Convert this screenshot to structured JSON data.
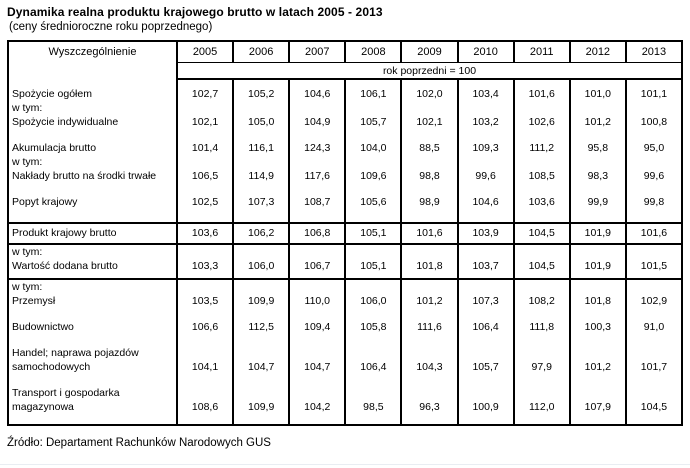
{
  "title": "Dynamika realna produktu krajowego brutto w latach 2005 - 2013",
  "subtitle": "(ceny średnioroczne roku poprzednego)",
  "source": "Źródło: Departament Rachunków Narodowych GUS",
  "table": {
    "header_col": "Wyszczególnienie",
    "years": [
      "2005",
      "2006",
      "2007",
      "2008",
      "2009",
      "2010",
      "2011",
      "2012",
      "2013"
    ],
    "base_note": "rok poprzedni = 100",
    "body_lines": [
      {
        "cls": "line first",
        "label": "Spożycie ogółem",
        "values": [
          "102,7",
          "105,2",
          "104,6",
          "106,1",
          "102,0",
          "103,4",
          "101,6",
          "101,0",
          "101,1"
        ]
      },
      {
        "cls": "line",
        "label": "w tym:",
        "values": null
      },
      {
        "cls": "line",
        "label": "Spożycie indywidualne",
        "values": [
          "102,1",
          "105,0",
          "104,9",
          "105,7",
          "102,1",
          "103,2",
          "102,6",
          "101,2",
          "100,8"
        ]
      },
      {
        "cls": "spacer",
        "label": "",
        "values": null
      },
      {
        "cls": "line",
        "label": "Akumulacja brutto",
        "values": [
          "101,4",
          "116,1",
          "124,3",
          "104,0",
          "88,5",
          "109,3",
          "111,2",
          "95,8",
          "95,0"
        ]
      },
      {
        "cls": "line",
        "label": "w tym:",
        "values": null
      },
      {
        "cls": "line",
        "label": "Nakłady brutto na środki trwałe",
        "values": [
          "106,5",
          "114,9",
          "117,6",
          "109,6",
          "98,8",
          "99,6",
          "108,5",
          "98,3",
          "99,6"
        ]
      },
      {
        "cls": "spacer",
        "label": "",
        "values": null
      },
      {
        "cls": "line last",
        "label": "Popyt krajowy",
        "values": [
          "102,5",
          "107,3",
          "108,7",
          "105,6",
          "98,9",
          "104,6",
          "103,6",
          "99,9",
          "99,8"
        ]
      },
      {
        "cls": "emph",
        "label": "Produkt krajowy brutto",
        "values": [
          "103,6",
          "106,2",
          "106,8",
          "105,1",
          "101,6",
          "103,9",
          "104,5",
          "101,9",
          "101,6"
        ]
      },
      {
        "cls": "line gstart",
        "label": "w tym:",
        "values": null
      },
      {
        "cls": "line padsm",
        "label": "Wartość dodana brutto",
        "values": [
          "103,3",
          "106,0",
          "106,7",
          "105,1",
          "101,8",
          "103,7",
          "104,5",
          "101,9",
          "101,5"
        ]
      },
      {
        "cls": "line gstart",
        "label": "w tym:",
        "values": null
      },
      {
        "cls": "line",
        "label": "Przemysł",
        "values": [
          "103,5",
          "109,9",
          "110,0",
          "106,0",
          "101,2",
          "107,3",
          "108,2",
          "101,8",
          "102,9"
        ]
      },
      {
        "cls": "spacer",
        "label": "",
        "values": null
      },
      {
        "cls": "line",
        "label": "Budownictwo",
        "values": [
          "106,6",
          "112,5",
          "109,4",
          "105,8",
          "111,6",
          "106,4",
          "111,8",
          "100,3",
          "91,0"
        ]
      },
      {
        "cls": "spacer",
        "label": "",
        "values": null
      },
      {
        "cls": "line",
        "label": "Handel; naprawa pojazdów",
        "values": null
      },
      {
        "cls": "line",
        "label": "samochodowych",
        "values": [
          "104,1",
          "104,7",
          "104,7",
          "106,4",
          "104,3",
          "105,7",
          "97,9",
          "101,2",
          "101,7"
        ]
      },
      {
        "cls": "spacer",
        "label": "",
        "values": null
      },
      {
        "cls": "line",
        "label": "Transport i gospodarka",
        "values": null
      },
      {
        "cls": "line last2",
        "label": "magazynowa",
        "values": [
          "108,6",
          "109,9",
          "104,2",
          "98,5",
          "96,3",
          "100,9",
          "112,0",
          "107,9",
          "104,5"
        ]
      }
    ]
  },
  "chart_data": {
    "type": "table",
    "title": "Dynamika realna produktu krajowego brutto w latach 2005 - 2013",
    "subtitle": "(ceny średnioroczne roku poprzednego)",
    "unit": "rok poprzedni = 100",
    "categories": [
      "2005",
      "2006",
      "2007",
      "2008",
      "2009",
      "2010",
      "2011",
      "2012",
      "2013"
    ],
    "series": [
      {
        "name": "Spożycie ogółem",
        "values": [
          102.7,
          105.2,
          104.6,
          106.1,
          102.0,
          103.4,
          101.6,
          101.0,
          101.1
        ]
      },
      {
        "name": "Spożycie indywidualne",
        "values": [
          102.1,
          105.0,
          104.9,
          105.7,
          102.1,
          103.2,
          102.6,
          101.2,
          100.8
        ]
      },
      {
        "name": "Akumulacja brutto",
        "values": [
          101.4,
          116.1,
          124.3,
          104.0,
          88.5,
          109.3,
          111.2,
          95.8,
          95.0
        ]
      },
      {
        "name": "Nakłady brutto na środki trwałe",
        "values": [
          106.5,
          114.9,
          117.6,
          109.6,
          98.8,
          99.6,
          108.5,
          98.3,
          99.6
        ]
      },
      {
        "name": "Popyt krajowy",
        "values": [
          102.5,
          107.3,
          108.7,
          105.6,
          98.9,
          104.6,
          103.6,
          99.9,
          99.8
        ]
      },
      {
        "name": "Produkt krajowy brutto",
        "values": [
          103.6,
          106.2,
          106.8,
          105.1,
          101.6,
          103.9,
          104.5,
          101.9,
          101.6
        ]
      },
      {
        "name": "Wartość dodana brutto",
        "values": [
          103.3,
          106.0,
          106.7,
          105.1,
          101.8,
          103.7,
          104.5,
          101.9,
          101.5
        ]
      },
      {
        "name": "Przemysł",
        "values": [
          103.5,
          109.9,
          110.0,
          106.0,
          101.2,
          107.3,
          108.2,
          101.8,
          102.9
        ]
      },
      {
        "name": "Budownictwo",
        "values": [
          106.6,
          112.5,
          109.4,
          105.8,
          111.6,
          106.4,
          111.8,
          100.3,
          91.0
        ]
      },
      {
        "name": "Handel; naprawa pojazdów samochodowych",
        "values": [
          104.1,
          104.7,
          104.7,
          106.4,
          104.3,
          105.7,
          97.9,
          101.2,
          101.7
        ]
      },
      {
        "name": "Transport i gospodarka magazynowa",
        "values": [
          108.6,
          109.9,
          104.2,
          98.5,
          96.3,
          100.9,
          112.0,
          107.9,
          104.5
        ]
      }
    ],
    "source": "Źródło: Departament Rachunków Narodowych GUS"
  }
}
